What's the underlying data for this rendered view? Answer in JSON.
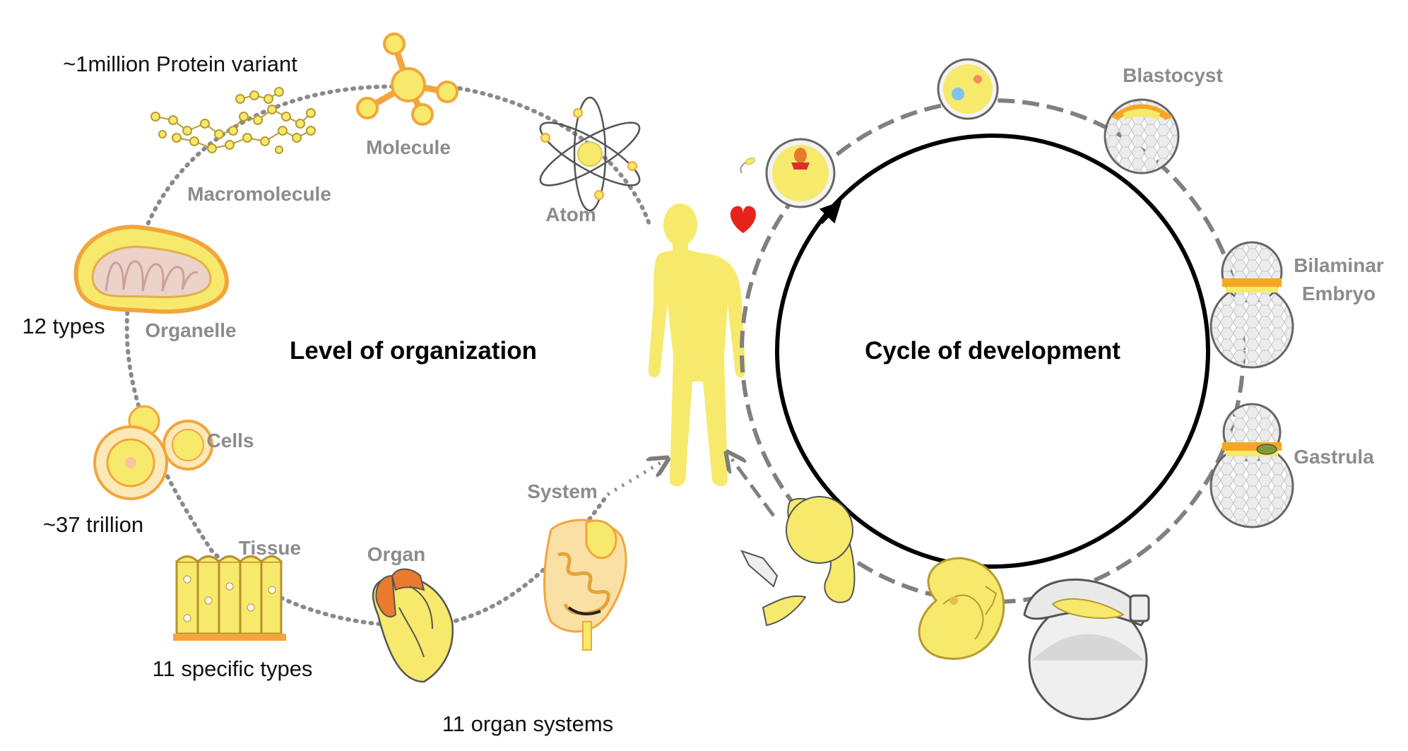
{
  "left": {
    "title": "Level of organization",
    "stages": {
      "molecule": "Molecule",
      "atom": "Atom",
      "macromolecule": "Macromolecule",
      "organelle": "Organelle",
      "cells": "Cells",
      "tissue": "Tissue",
      "organ": "Organ",
      "system": "System"
    },
    "annotations": {
      "protein": "~1million Protein variant",
      "organelle_types": "12 types",
      "cell_count": "~37 trillion",
      "tissue_types": "11 specific types",
      "organ_systems": "11 organ systems"
    }
  },
  "right": {
    "title": "Cycle of development",
    "stages": {
      "blastocyst": "Blastocyst",
      "bilaminar_line1": "Bilaminar",
      "bilaminar_line2": "Embryo",
      "gastrula": "Gastrula"
    }
  },
  "colors": {
    "yellow": "#f7e96b",
    "orange": "#f5a623",
    "grey": "#8c8c8c",
    "heart": "#e8231b"
  }
}
